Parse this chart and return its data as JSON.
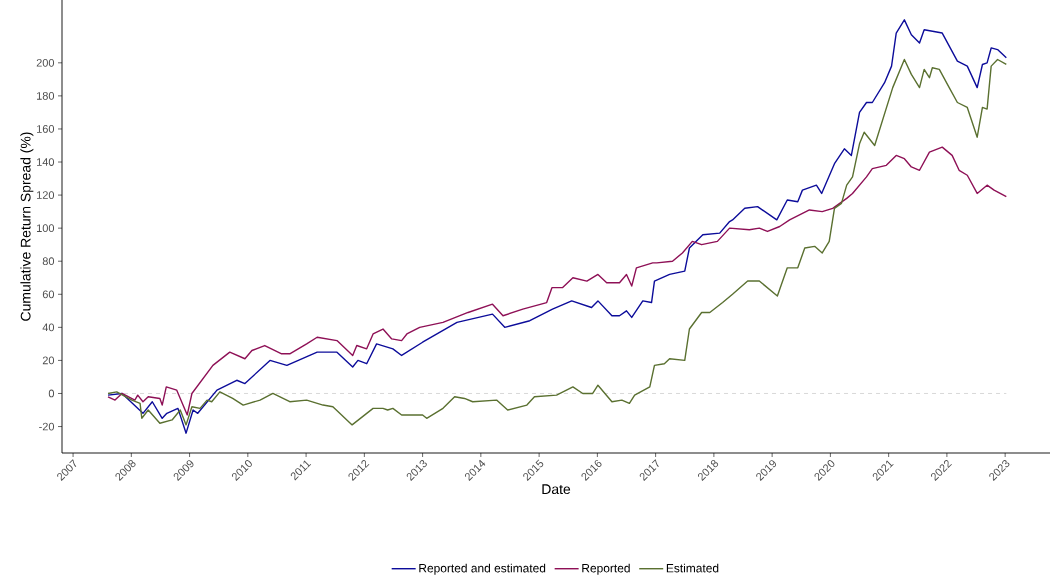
{
  "chart_data": {
    "type": "line",
    "xlabel": "Date",
    "ylabel": "Cumulative Return Spread (%)",
    "xlim": [
      2006.81,
      2023.77
    ],
    "xticks": [
      2007,
      2008,
      2009,
      2010,
      2011,
      2012,
      2013,
      2014,
      2015,
      2016,
      2017,
      2018,
      2019,
      2020,
      2021,
      2022,
      2023
    ],
    "ylim": [
      -36,
      238
    ],
    "yticks": [
      -20,
      0,
      20,
      40,
      60,
      80,
      100,
      120,
      140,
      160,
      180,
      200
    ],
    "grid": false,
    "legend": "bottom",
    "marker": "none",
    "line_style": "solid",
    "ref_lines": [
      {
        "axis": "y",
        "value": 0,
        "color": "#bebebe",
        "line_style": "dashed"
      }
    ],
    "series": [
      {
        "name": "Reported and estimated",
        "color": "#0c0c9a",
        "x": [
          2007.6,
          2007.84,
          2008.2,
          2008.36,
          2008.53,
          2008.61,
          2008.8,
          2008.94,
          2009.06,
          2009.14,
          2009.47,
          2009.81,
          2009.95,
          2010.38,
          2010.67,
          2011.19,
          2011.53,
          2011.8,
          2011.89,
          2012.04,
          2012.21,
          2012.49,
          2012.64,
          2013.0,
          2013.59,
          2014.2,
          2014.41,
          2014.84,
          2015.23,
          2015.56,
          2015.9,
          2016.01,
          2016.25,
          2016.38,
          2016.5,
          2016.59,
          2016.78,
          2016.93,
          2016.98,
          2017.24,
          2017.5,
          2017.58,
          2017.81,
          2018.1,
          2018.27,
          2018.32,
          2018.53,
          2018.75,
          2019.08,
          2019.26,
          2019.44,
          2019.52,
          2019.76,
          2019.85,
          2020.07,
          2020.24,
          2020.36,
          2020.5,
          2020.62,
          2020.72,
          2020.93,
          2021.05,
          2021.13,
          2021.27,
          2021.39,
          2021.53,
          2021.61,
          2021.92,
          2022.18,
          2022.35,
          2022.52,
          2022.61,
          2022.69,
          2022.76,
          2022.87,
          2023.02
        ],
        "values": [
          -1,
          0,
          -12,
          -5,
          -15,
          -12,
          -9,
          -24,
          -10,
          -12,
          2,
          8,
          6,
          20,
          17,
          25,
          25,
          16,
          20,
          18,
          30,
          27,
          23,
          31,
          43,
          48,
          40,
          44,
          51,
          56,
          52,
          56,
          47,
          47,
          50,
          46,
          56,
          55,
          68,
          72,
          74,
          88,
          96,
          97,
          104,
          105,
          112,
          113,
          105,
          117,
          116,
          123,
          126,
          121,
          139,
          148,
          144,
          170,
          176,
          176,
          188,
          198,
          218,
          226,
          217,
          212,
          220,
          218,
          201,
          198,
          185,
          199,
          200,
          209,
          208,
          203
        ]
      },
      {
        "name": "Reported",
        "color": "#8e1056",
        "x": [
          2007.6,
          2007.72,
          2007.84,
          2008.06,
          2008.11,
          2008.2,
          2008.29,
          2008.49,
          2008.53,
          2008.6,
          2008.78,
          2008.96,
          2009.04,
          2009.4,
          2009.69,
          2009.95,
          2010.07,
          2010.29,
          2010.58,
          2010.72,
          2011.01,
          2011.19,
          2011.53,
          2011.8,
          2011.87,
          2012.04,
          2012.15,
          2012.32,
          2012.47,
          2012.64,
          2012.73,
          2012.95,
          2013.35,
          2013.78,
          2014.2,
          2014.38,
          2014.72,
          2015.13,
          2015.22,
          2015.4,
          2015.58,
          2015.82,
          2016.01,
          2016.16,
          2016.38,
          2016.5,
          2016.59,
          2016.67,
          2016.95,
          2017.02,
          2017.29,
          2017.46,
          2017.63,
          2017.79,
          2018.06,
          2018.27,
          2018.61,
          2018.78,
          2018.92,
          2019.13,
          2019.3,
          2019.64,
          2019.86,
          2020.04,
          2020.28,
          2020.38,
          2020.62,
          2020.72,
          2020.96,
          2021.13,
          2021.27,
          2021.39,
          2021.53,
          2021.7,
          2021.92,
          2022.09,
          2022.21,
          2022.35,
          2022.52,
          2022.69,
          2022.81,
          2023.02
        ],
        "values": [
          -2,
          -4,
          0,
          -4,
          -1,
          -5,
          -2,
          -3,
          -7,
          4,
          2,
          -13,
          0,
          17,
          25,
          21,
          26,
          29,
          24,
          24,
          30,
          34,
          32,
          23,
          29,
          27,
          36,
          39,
          33,
          32,
          36,
          40,
          43,
          49,
          54,
          47,
          51,
          55,
          64,
          64,
          70,
          68,
          72,
          67,
          67,
          72,
          65,
          76,
          79,
          79,
          80,
          85,
          92,
          90,
          92,
          100,
          99,
          100,
          98,
          101,
          105,
          111,
          110,
          112,
          118,
          121,
          131,
          136,
          138,
          144,
          142,
          137,
          135,
          146,
          149,
          144,
          135,
          132,
          121,
          126,
          123,
          119
        ]
      },
      {
        "name": "Estimated",
        "color": "#5a7030",
        "x": [
          2007.6,
          2007.75,
          2008.01,
          2008.15,
          2008.18,
          2008.29,
          2008.49,
          2008.7,
          2008.84,
          2008.94,
          2009.04,
          2009.18,
          2009.3,
          2009.38,
          2009.52,
          2009.74,
          2009.92,
          2010.21,
          2010.43,
          2010.72,
          2011.01,
          2011.29,
          2011.46,
          2011.79,
          2012.15,
          2012.32,
          2012.4,
          2012.49,
          2012.64,
          2013.0,
          2013.07,
          2013.35,
          2013.55,
          2013.72,
          2013.86,
          2014.27,
          2014.46,
          2014.79,
          2014.92,
          2015.3,
          2015.58,
          2015.75,
          2015.92,
          2016.01,
          2016.25,
          2016.42,
          2016.55,
          2016.64,
          2016.9,
          2016.98,
          2017.15,
          2017.24,
          2017.5,
          2017.58,
          2017.79,
          2017.93,
          2018.15,
          2018.32,
          2018.58,
          2018.78,
          2019.09,
          2019.26,
          2019.44,
          2019.56,
          2019.73,
          2019.86,
          2019.98,
          2020.07,
          2020.19,
          2020.28,
          2020.38,
          2020.5,
          2020.58,
          2020.76,
          2021.07,
          2021.27,
          2021.39,
          2021.53,
          2021.61,
          2021.7,
          2021.75,
          2021.87,
          2022.04,
          2022.18,
          2022.35,
          2022.52,
          2022.61,
          2022.69,
          2022.76,
          2022.87,
          2023.02
        ],
        "values": [
          0,
          1,
          -4,
          -6,
          -15,
          -10,
          -18,
          -16,
          -10,
          -19,
          -8,
          -9,
          -4,
          -5,
          1,
          -3,
          -7,
          -4,
          0,
          -5,
          -4,
          -7,
          -8,
          -19,
          -9,
          -9,
          -10,
          -9,
          -13,
          -13,
          -15,
          -9,
          -2,
          -3,
          -5,
          -4,
          -10,
          -7,
          -2,
          -1,
          4,
          0,
          0,
          5,
          -5,
          -4,
          -6,
          -1,
          4,
          17,
          18,
          21,
          20,
          39,
          49,
          49,
          55,
          60,
          68,
          68,
          59,
          76,
          76,
          88,
          89,
          85,
          92,
          112,
          115,
          126,
          131,
          151,
          158,
          150,
          185,
          202,
          193,
          185,
          196,
          191,
          197,
          196,
          185,
          176,
          173,
          155,
          173,
          172,
          198,
          202,
          199
        ]
      }
    ]
  }
}
